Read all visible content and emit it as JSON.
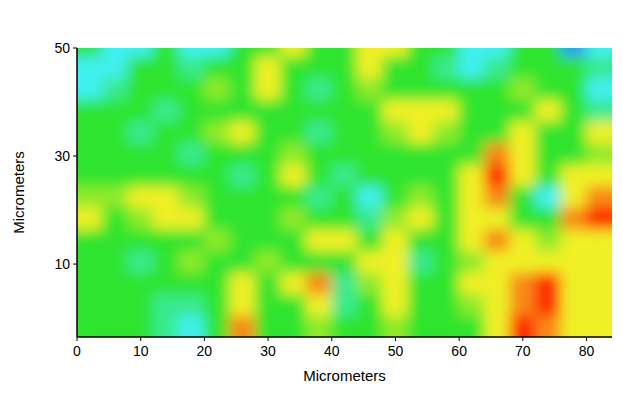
{
  "chart_data": {
    "type": "heatmap",
    "x_label": "Micrometers",
    "y_label": "Micrometers",
    "xlim": [
      0,
      84
    ],
    "ylim": [
      -3.5,
      50
    ],
    "xticks": [
      0,
      10,
      20,
      30,
      40,
      50,
      60,
      70,
      80
    ],
    "yticks": [
      10,
      30,
      50
    ],
    "x": [
      2,
      6,
      10,
      14,
      18,
      22,
      26,
      30,
      34,
      38,
      42,
      46,
      50,
      54,
      58,
      62,
      66,
      70,
      74,
      78,
      82
    ],
    "y": [
      -1.5,
      2.5,
      6.5,
      10.5,
      14.5,
      18.5,
      22.5,
      26.5,
      30.5,
      34.5,
      38.5,
      42.5,
      46.5,
      50.5
    ],
    "color_range": [
      0,
      4
    ],
    "cells": [
      [
        2,
        2,
        2,
        1.5,
        1,
        2,
        3.5,
        2,
        2,
        2.5,
        2,
        2,
        2.5,
        2,
        2,
        2,
        3,
        4,
        3.5,
        3,
        3
      ],
      [
        2,
        2,
        2,
        1.5,
        1.5,
        2,
        3,
        2,
        2,
        3,
        1.5,
        2,
        3,
        2,
        2,
        2.5,
        3,
        3.5,
        4,
        3,
        3
      ],
      [
        2,
        2,
        2,
        2,
        2,
        2,
        3,
        2,
        3,
        3.5,
        1.5,
        2.5,
        3,
        2,
        2,
        3,
        3,
        3.5,
        4,
        3,
        3
      ],
      [
        2,
        2,
        1.5,
        2,
        2.5,
        2,
        2,
        2.5,
        2,
        2,
        2,
        3,
        3,
        1.5,
        2,
        2.5,
        3,
        3,
        3,
        3,
        3
      ],
      [
        2,
        2,
        2,
        2,
        2,
        2.5,
        2,
        2,
        2,
        3,
        3,
        2,
        3,
        2,
        2,
        3,
        3.5,
        3,
        2.5,
        3,
        3
      ],
      [
        3,
        2,
        2.5,
        3,
        3,
        2,
        2,
        2,
        2.5,
        2,
        2,
        1.5,
        2.5,
        3,
        2,
        3,
        3,
        2,
        2,
        3.5,
        4
      ],
      [
        2.5,
        2.5,
        3,
        3,
        2.5,
        2,
        2,
        2,
        2,
        1.5,
        2,
        1,
        2,
        2.5,
        2,
        3,
        3.5,
        2,
        1,
        3,
        3.5
      ],
      [
        2,
        2,
        2,
        2,
        2,
        2,
        1.5,
        2,
        3,
        2,
        1.5,
        2,
        2,
        2,
        2,
        3,
        4,
        3,
        2,
        3,
        3
      ],
      [
        2,
        2,
        2,
        2,
        1.5,
        2,
        2,
        2,
        2.5,
        2,
        2,
        2,
        2,
        2,
        2,
        2,
        3.5,
        3,
        2,
        2,
        2.5
      ],
      [
        2,
        2,
        1.5,
        2,
        2,
        2.5,
        3,
        2,
        2,
        1.5,
        2,
        2,
        2.5,
        3,
        2.5,
        2,
        2,
        3,
        2,
        2,
        3
      ],
      [
        2,
        2,
        2,
        1.5,
        2,
        2,
        2,
        2,
        2,
        2,
        2,
        2,
        3,
        3,
        3,
        2,
        2,
        2,
        3,
        2,
        1.5
      ],
      [
        1,
        1.5,
        2,
        2,
        2,
        2.5,
        2,
        3,
        2,
        1.5,
        2,
        2.5,
        2,
        2,
        2,
        2,
        2,
        2.5,
        2,
        2,
        1
      ],
      [
        1,
        1,
        2,
        2,
        1.5,
        2,
        2,
        3,
        2,
        2,
        2,
        3,
        2,
        2,
        1.5,
        1,
        1.5,
        2,
        2,
        2,
        1.5
      ],
      [
        2,
        1,
        1,
        2,
        1,
        1,
        2,
        2,
        3,
        2,
        2,
        3,
        3,
        2,
        2,
        1,
        1,
        2,
        2,
        0.5,
        1
      ]
    ]
  }
}
